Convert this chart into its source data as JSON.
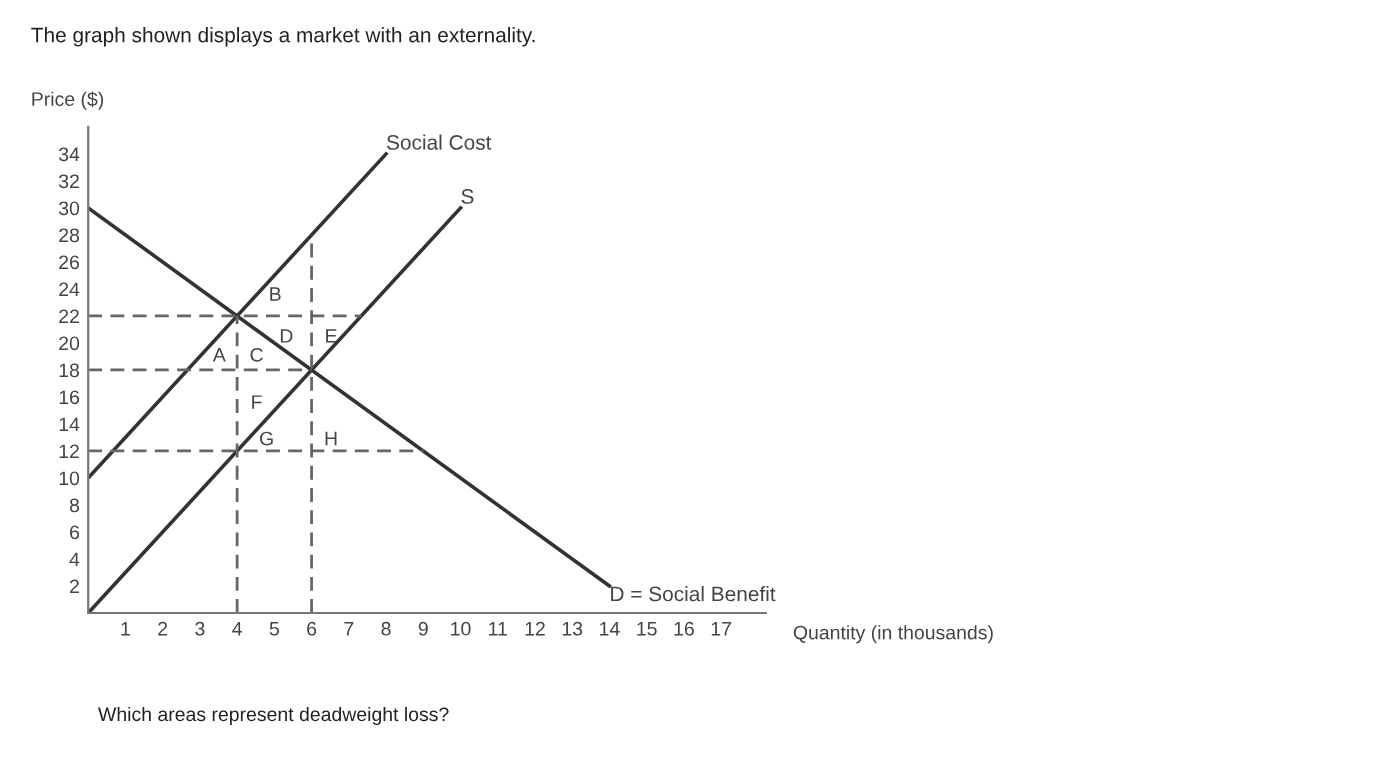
{
  "chart_data": {
    "type": "line",
    "title": "The graph shown displays a market with an externality.",
    "ylabel": "Price ($)",
    "xlabel": "Quantity (in thousands)",
    "xlim": [
      0,
      18.2
    ],
    "ylim": [
      0,
      36
    ],
    "xticks": [
      1,
      2,
      3,
      4,
      5,
      6,
      7,
      8,
      9,
      10,
      11,
      12,
      13,
      14,
      15,
      16,
      17
    ],
    "yticks": [
      2,
      4,
      6,
      8,
      10,
      12,
      14,
      16,
      18,
      20,
      22,
      24,
      26,
      28,
      30,
      32,
      34
    ],
    "grid": false,
    "legend": false,
    "marker": "none",
    "series": [
      {
        "name": "Social Cost",
        "color": "#333333",
        "x": [
          0,
          8
        ],
        "values": [
          10,
          34
        ],
        "line_style": "solid"
      },
      {
        "name": "S",
        "color": "#333333",
        "x": [
          0,
          10
        ],
        "values": [
          0,
          30
        ],
        "line_style": "solid"
      },
      {
        "name": "D = Social Benefit",
        "color": "#333333",
        "x": [
          0,
          14
        ],
        "values": [
          30,
          2
        ],
        "line_style": "solid"
      },
      {
        "color": "#666666",
        "x": [
          0,
          7.33
        ],
        "values": [
          22,
          22
        ],
        "line_style": "dashed"
      },
      {
        "color": "#666666",
        "x": [
          0,
          6
        ],
        "values": [
          18,
          18
        ],
        "line_style": "dashed"
      },
      {
        "color": "#666666",
        "x": [
          0,
          9
        ],
        "values": [
          12,
          12
        ],
        "line_style": "dashed"
      },
      {
        "color": "#666666",
        "x": [
          4,
          4
        ],
        "values": [
          0,
          22
        ],
        "line_style": "dashed"
      },
      {
        "color": "#666666",
        "x": [
          6,
          6
        ],
        "values": [
          0,
          28
        ],
        "line_style": "dashed"
      }
    ],
    "annotations": [
      {
        "text": "A",
        "x": 3,
        "y": 19
      },
      {
        "text": "C",
        "x": 4,
        "y": 19
      },
      {
        "text": "B",
        "x": 4.5,
        "y": 23.5
      },
      {
        "text": "D",
        "x": 4.8,
        "y": 20.4
      },
      {
        "text": "E",
        "x": 6,
        "y": 20.4
      },
      {
        "text": "F",
        "x": 4,
        "y": 15.5
      },
      {
        "text": "G",
        "x": 4.27,
        "y": 12.8
      },
      {
        "text": "H",
        "x": 6,
        "y": 12.8
      },
      "Which areas represent deadweight loss?"
    ]
  }
}
